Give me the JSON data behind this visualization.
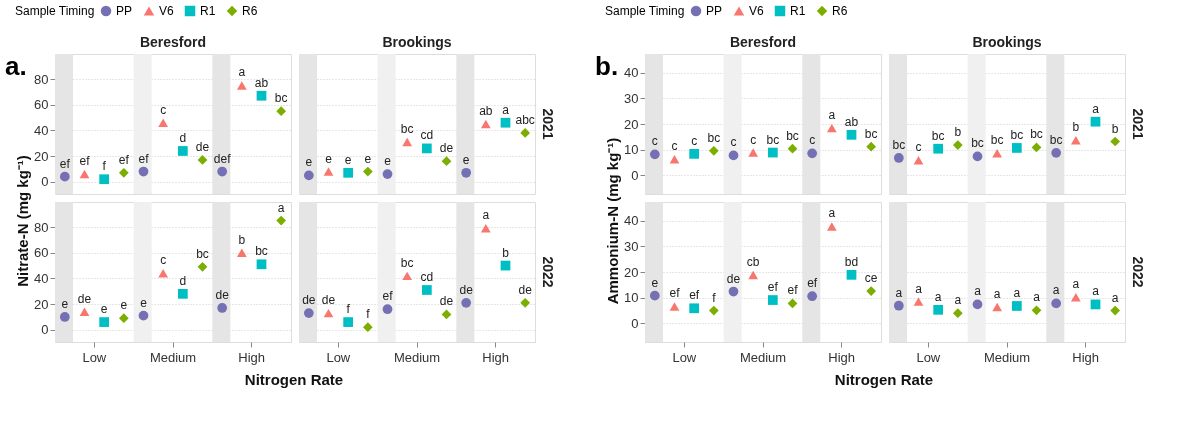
{
  "chart_data": [
    {
      "type": "scatter",
      "title": "Beresford",
      "ylabel": "Nitrate-N (mg kg⁻¹)",
      "legend_title": "Sample Timing",
      "legend": "top",
      "annotations": [
        "a."
      ],
      "categories": [
        "Low",
        "Medium",
        "High"
      ],
      "ylim": [
        -9.5,
        99.5
      ],
      "yticks": [
        0,
        20,
        40,
        60,
        80
      ],
      "grid": "y",
      "tick_labels": "y",
      "bands": [
        {
          "axis": "x",
          "from": "Low",
          "to": "Low",
          "color": "#e5e5e5"
        },
        {
          "axis": "x",
          "from": "Medium",
          "to": "Medium",
          "color": "#f0f0f0"
        },
        {
          "axis": "x",
          "from": "High",
          "to": "High",
          "color": "#e5e5e5"
        }
      ],
      "series": [
        {
          "name": "PP",
          "color": "#7570b3",
          "marker": "circle",
          "values": [
            4,
            8,
            8
          ],
          "value_labels": [
            "ef",
            "ef",
            "def"
          ]
        },
        {
          "name": "V6",
          "color": "#f8766d",
          "marker": "triangle",
          "values": [
            6,
            46,
            75
          ],
          "value_labels": [
            "ef",
            "c",
            "a"
          ]
        },
        {
          "name": "R1",
          "color": "#00bfc4",
          "marker": "square",
          "values": [
            2,
            24,
            67
          ],
          "value_labels": [
            "f",
            "d",
            "ab"
          ]
        },
        {
          "name": "R6",
          "color": "#7cae00",
          "marker": "diamond",
          "values": [
            7,
            17,
            55
          ],
          "value_labels": [
            "ef",
            "de",
            "bc"
          ]
        }
      ]
    },
    {
      "type": "scatter",
      "title": "Brookings",
      "annotations": [
        "2021"
      ],
      "categories": [
        "Low",
        "Medium",
        "High"
      ],
      "ylim": [
        -9.5,
        99.5
      ],
      "yticks": [
        0,
        20,
        40,
        60,
        80
      ],
      "grid": "y",
      "tick_labels": false,
      "bands": [
        {
          "axis": "x",
          "from": "Low",
          "to": "Low",
          "color": "#e5e5e5"
        },
        {
          "axis": "x",
          "from": "Medium",
          "to": "Medium",
          "color": "#f0f0f0"
        },
        {
          "axis": "x",
          "from": "High",
          "to": "High",
          "color": "#e5e5e5"
        }
      ],
      "series": [
        {
          "color": "#7570b3",
          "marker": "circle",
          "values": [
            5,
            6,
            7
          ],
          "value_labels": [
            "e",
            "e",
            "e"
          ]
        },
        {
          "color": "#f8766d",
          "marker": "triangle",
          "values": [
            8,
            31,
            45
          ],
          "value_labels": [
            "e",
            "bc",
            "ab"
          ]
        },
        {
          "color": "#00bfc4",
          "marker": "square",
          "values": [
            7,
            26,
            46
          ],
          "value_labels": [
            "e",
            "cd",
            "a"
          ]
        },
        {
          "color": "#7cae00",
          "marker": "diamond",
          "values": [
            8,
            16,
            38
          ],
          "value_labels": [
            "e",
            "de",
            "abc"
          ]
        }
      ]
    },
    {
      "type": "scatter",
      "xlabel": "Nitrogen Rate",
      "categories": [
        "Low",
        "Medium",
        "High"
      ],
      "ylim": [
        -9.5,
        99.5
      ],
      "yticks": [
        0,
        20,
        40,
        60,
        80
      ],
      "grid": "y",
      "bands": [
        {
          "axis": "x",
          "from": "Low",
          "to": "Low",
          "color": "#e5e5e5"
        },
        {
          "axis": "x",
          "from": "Medium",
          "to": "Medium",
          "color": "#f0f0f0"
        },
        {
          "axis": "x",
          "from": "High",
          "to": "High",
          "color": "#e5e5e5"
        }
      ],
      "series": [
        {
          "color": "#7570b3",
          "marker": "circle",
          "values": [
            10,
            11,
            17
          ],
          "value_labels": [
            "e",
            "e",
            "de"
          ]
        },
        {
          "color": "#f8766d",
          "marker": "triangle",
          "values": [
            14,
            44,
            60
          ],
          "value_labels": [
            "de",
            "c",
            "b"
          ]
        },
        {
          "color": "#00bfc4",
          "marker": "square",
          "values": [
            6,
            28,
            51
          ],
          "value_labels": [
            "e",
            "d",
            "bc"
          ]
        },
        {
          "color": "#7cae00",
          "marker": "diamond",
          "values": [
            9,
            49,
            85
          ],
          "value_labels": [
            "e",
            "bc",
            "a"
          ]
        }
      ]
    },
    {
      "type": "scatter",
      "annotations": [
        "2022"
      ],
      "categories": [
        "Low",
        "Medium",
        "High"
      ],
      "ylim": [
        -9.5,
        99.5
      ],
      "yticks": [
        0,
        20,
        40,
        60,
        80
      ],
      "grid": "y",
      "tick_labels": "x",
      "bands": [
        {
          "axis": "x",
          "from": "Low",
          "to": "Low",
          "color": "#e5e5e5"
        },
        {
          "axis": "x",
          "from": "Medium",
          "to": "Medium",
          "color": "#f0f0f0"
        },
        {
          "axis": "x",
          "from": "High",
          "to": "High",
          "color": "#e5e5e5"
        }
      ],
      "series": [
        {
          "color": "#7570b3",
          "marker": "circle",
          "values": [
            13,
            16,
            21
          ],
          "value_labels": [
            "de",
            "ef",
            "de"
          ]
        },
        {
          "color": "#f8766d",
          "marker": "triangle",
          "values": [
            13,
            42,
            79
          ],
          "value_labels": [
            "de",
            "bc",
            "a"
          ]
        },
        {
          "color": "#00bfc4",
          "marker": "square",
          "values": [
            6,
            31,
            50
          ],
          "value_labels": [
            "f",
            "cd",
            "b"
          ]
        },
        {
          "color": "#7cae00",
          "marker": "diamond",
          "values": [
            2,
            12,
            21
          ],
          "value_labels": [
            "f",
            "de",
            "de"
          ]
        }
      ]
    },
    {
      "type": "scatter",
      "title": "Beresford",
      "ylabel": "Ammonium-N (mg kg⁻¹)",
      "legend_title": "Sample Timing",
      "legend": "top",
      "annotations": [
        "b."
      ],
      "categories": [
        "Low",
        "Medium",
        "High"
      ],
      "ylim": [
        -7.2,
        47.2
      ],
      "yticks": [
        0,
        10,
        20,
        30,
        40
      ],
      "grid": "y",
      "tick_labels": "y",
      "bands": [
        {
          "axis": "x",
          "from": "Low",
          "to": "Low",
          "color": "#e5e5e5"
        },
        {
          "axis": "x",
          "from": "Medium",
          "to": "Medium",
          "color": "#f0f0f0"
        },
        {
          "axis": "x",
          "from": "High",
          "to": "High",
          "color": "#e5e5e5"
        }
      ],
      "series": [
        {
          "name": "PP",
          "color": "#7570b3",
          "marker": "circle",
          "values": [
            8.2,
            7.8,
            8.6
          ],
          "value_labels": [
            "c",
            "c",
            "c"
          ]
        },
        {
          "name": "V6",
          "color": "#f8766d",
          "marker": "triangle",
          "values": [
            6.3,
            8.9,
            18.4
          ],
          "value_labels": [
            "c",
            "c",
            "a"
          ]
        },
        {
          "name": "R1",
          "color": "#00bfc4",
          "marker": "square",
          "values": [
            8.4,
            8.9,
            15.8
          ],
          "value_labels": [
            "c",
            "bc",
            "ab"
          ]
        },
        {
          "name": "R6",
          "color": "#7cae00",
          "marker": "diamond",
          "values": [
            9.6,
            10.4,
            11.2
          ],
          "value_labels": [
            "bc",
            "bc",
            "bc"
          ]
        }
      ]
    },
    {
      "type": "scatter",
      "title": "Brookings",
      "annotations": [
        "2021"
      ],
      "categories": [
        "Low",
        "Medium",
        "High"
      ],
      "ylim": [
        -7.2,
        47.2
      ],
      "yticks": [
        0,
        10,
        20,
        30,
        40
      ],
      "grid": "y",
      "tick_labels": false,
      "bands": [
        {
          "axis": "x",
          "from": "Low",
          "to": "Low",
          "color": "#e5e5e5"
        },
        {
          "axis": "x",
          "from": "Medium",
          "to": "Medium",
          "color": "#f0f0f0"
        },
        {
          "axis": "x",
          "from": "High",
          "to": "High",
          "color": "#e5e5e5"
        }
      ],
      "series": [
        {
          "color": "#7570b3",
          "marker": "circle",
          "values": [
            6.8,
            7.4,
            8.8
          ],
          "value_labels": [
            "bc",
            "bc",
            "bc"
          ]
        },
        {
          "color": "#f8766d",
          "marker": "triangle",
          "values": [
            5.9,
            8.6,
            13.7
          ],
          "value_labels": [
            "c",
            "bc",
            "b"
          ]
        },
        {
          "color": "#00bfc4",
          "marker": "square",
          "values": [
            10.4,
            10.7,
            20.9
          ],
          "value_labels": [
            "bc",
            "bc",
            "a"
          ]
        },
        {
          "color": "#7cae00",
          "marker": "diamond",
          "values": [
            11.8,
            10.9,
            13.2
          ],
          "value_labels": [
            "b",
            "bc",
            "b"
          ]
        }
      ]
    },
    {
      "type": "scatter",
      "xlabel": "Nitrogen Rate",
      "categories": [
        "Low",
        "Medium",
        "High"
      ],
      "ylim": [
        -7.2,
        47.2
      ],
      "yticks": [
        0,
        10,
        20,
        30,
        40
      ],
      "grid": "y",
      "bands": [
        {
          "axis": "x",
          "from": "Low",
          "to": "Low",
          "color": "#e5e5e5"
        },
        {
          "axis": "x",
          "from": "Medium",
          "to": "Medium",
          "color": "#f0f0f0"
        },
        {
          "axis": "x",
          "from": "High",
          "to": "High",
          "color": "#e5e5e5"
        }
      ],
      "series": [
        {
          "color": "#7570b3",
          "marker": "circle",
          "values": [
            10.8,
            12.4,
            10.6
          ],
          "value_labels": [
            "e",
            "de",
            "ef"
          ]
        },
        {
          "color": "#f8766d",
          "marker": "triangle",
          "values": [
            6.6,
            18.8,
            37.7
          ],
          "value_labels": [
            "ef",
            "cb",
            "a"
          ]
        },
        {
          "color": "#00bfc4",
          "marker": "square",
          "values": [
            5.9,
            9.1,
            18.9
          ],
          "value_labels": [
            "ef",
            "ef",
            "bd"
          ]
        },
        {
          "color": "#7cae00",
          "marker": "diamond",
          "values": [
            5.0,
            7.8,
            12.6
          ],
          "value_labels": [
            "f",
            "ef",
            "ce"
          ]
        }
      ]
    },
    {
      "type": "scatter",
      "annotations": [
        "2022"
      ],
      "categories": [
        "Low",
        "Medium",
        "High"
      ],
      "ylim": [
        -7.2,
        47.2
      ],
      "yticks": [
        0,
        10,
        20,
        30,
        40
      ],
      "grid": "y",
      "tick_labels": "x",
      "bands": [
        {
          "axis": "x",
          "from": "Low",
          "to": "Low",
          "color": "#e5e5e5"
        },
        {
          "axis": "x",
          "from": "Medium",
          "to": "Medium",
          "color": "#f0f0f0"
        },
        {
          "axis": "x",
          "from": "High",
          "to": "High",
          "color": "#e5e5e5"
        }
      ],
      "series": [
        {
          "color": "#7570b3",
          "marker": "circle",
          "values": [
            6.9,
            7.4,
            7.8
          ],
          "value_labels": [
            "a",
            "a",
            "a"
          ]
        },
        {
          "color": "#f8766d",
          "marker": "triangle",
          "values": [
            8.5,
            6.4,
            10.2
          ],
          "value_labels": [
            "a",
            "a",
            "a"
          ]
        },
        {
          "color": "#00bfc4",
          "marker": "square",
          "values": [
            5.3,
            6.8,
            7.4
          ],
          "value_labels": [
            "a",
            "a",
            "a"
          ]
        },
        {
          "color": "#7cae00",
          "marker": "diamond",
          "values": [
            4.0,
            5.1,
            5.0
          ],
          "value_labels": [
            "a",
            "a",
            "a"
          ]
        }
      ]
    }
  ]
}
